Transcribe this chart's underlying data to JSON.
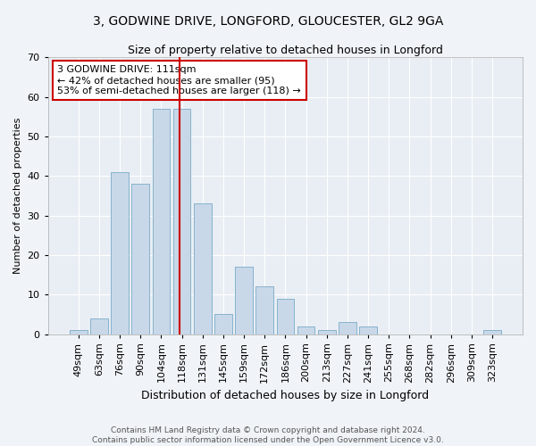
{
  "title1": "3, GODWINE DRIVE, LONGFORD, GLOUCESTER, GL2 9GA",
  "title2": "Size of property relative to detached houses in Longford",
  "xlabel": "Distribution of detached houses by size in Longford",
  "ylabel": "Number of detached properties",
  "categories": [
    "49sqm",
    "63sqm",
    "76sqm",
    "90sqm",
    "104sqm",
    "118sqm",
    "131sqm",
    "145sqm",
    "159sqm",
    "172sqm",
    "186sqm",
    "200sqm",
    "213sqm",
    "227sqm",
    "241sqm",
    "255sqm",
    "268sqm",
    "282sqm",
    "296sqm",
    "309sqm",
    "323sqm"
  ],
  "values": [
    1,
    4,
    41,
    38,
    57,
    57,
    33,
    5,
    17,
    12,
    9,
    2,
    1,
    3,
    2,
    0,
    0,
    0,
    0,
    0,
    1
  ],
  "bar_color": "#c8d8e8",
  "bar_edge_color": "#7aaac8",
  "vline_x": 4.87,
  "vline_color": "#cc0000",
  "annotation_title": "3 GODWINE DRIVE: 111sqm",
  "annotation_line1": "← 42% of detached houses are smaller (95)",
  "annotation_line2": "53% of semi-detached houses are larger (118) →",
  "annotation_box_color": "#cc0000",
  "ylim": [
    0,
    70
  ],
  "yticks": [
    0,
    10,
    20,
    30,
    40,
    50,
    60,
    70
  ],
  "footer1": "Contains HM Land Registry data © Crown copyright and database right 2024.",
  "footer2": "Contains public sector information licensed under the Open Government Licence v3.0.",
  "bg_color": "#f0f4f8",
  "plot_bg_color": "#e8eef4",
  "title1_fontsize": 10,
  "title2_fontsize": 9,
  "xlabel_fontsize": 9,
  "ylabel_fontsize": 8,
  "tick_fontsize": 8,
  "annotation_fontsize": 8,
  "footer_fontsize": 6.5
}
